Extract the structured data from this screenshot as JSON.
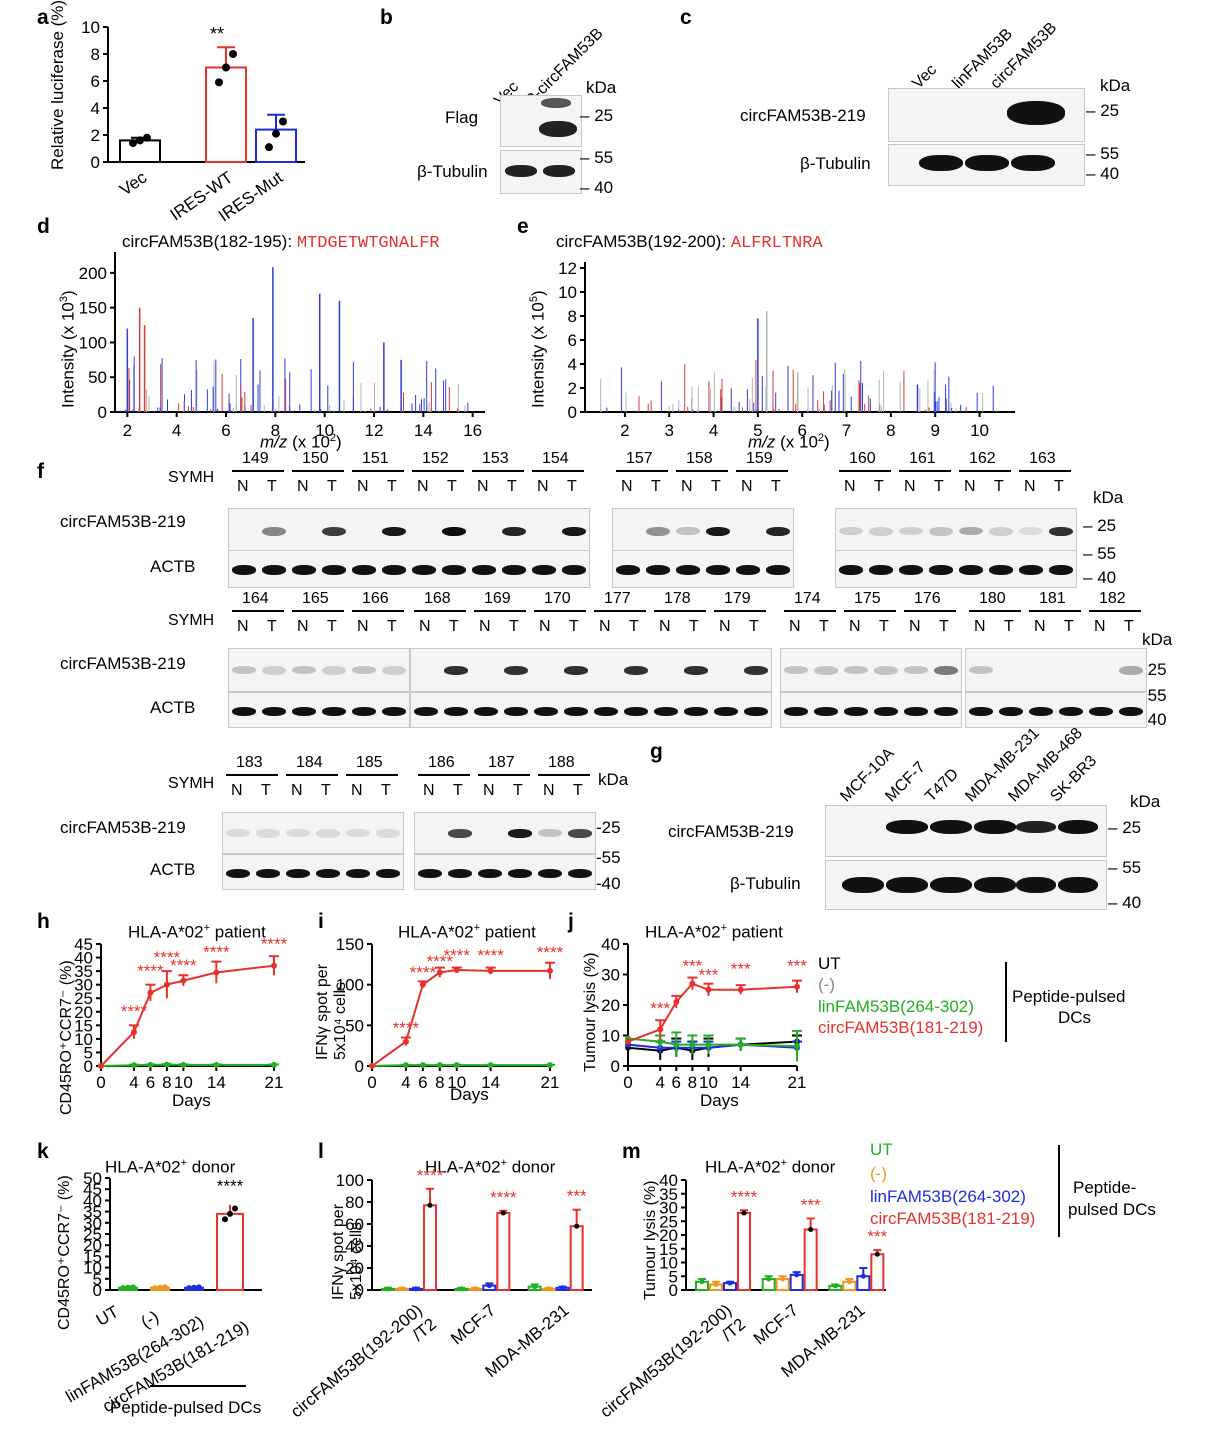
{
  "panels": {
    "a": "a",
    "b": "b",
    "c": "c",
    "d": "d",
    "e": "e",
    "f": "f",
    "g": "g",
    "h": "h",
    "i": "i",
    "j": "j",
    "k": "k",
    "l": "l",
    "m": "m"
  },
  "colors": {
    "red": "#e8312a",
    "blue": "#1f2de0",
    "green": "#22b022",
    "orange": "#f0961e",
    "black": "#000000",
    "spec_red": "#d23c3c",
    "spec_blue": "#2f3fd6",
    "spec_grey": "#b4b4b4"
  },
  "kda": "kDa",
  "panel_a": {
    "ylabel": "Relative luciferase (%)",
    "star": "**"
  },
  "panel_b": {
    "lanes": [
      "Vec",
      "P-circFAM53B"
    ],
    "rows": [
      "Flag",
      "β-Tubulin"
    ],
    "markers": [
      "25",
      "55",
      "40"
    ]
  },
  "panel_c": {
    "lanes": [
      "Vec",
      "linFAM53B",
      "circFAM53B"
    ],
    "rows": [
      "circFAM53B-219",
      "β-Tubulin"
    ],
    "markers": [
      "25",
      "55",
      "40"
    ]
  },
  "panel_d": {
    "title_prefix": "circFAM53B(182-195):",
    "seq": "MTDGETWTGNALFR",
    "ylabel": "Intensity (x 10",
    "ylabel_exp": "3",
    "ylabel_end": ")",
    "xlabel_mz": "m/z",
    "xlabel_rest": " (x 10",
    "xlabel_exp": "2",
    "xlabel_end": ")"
  },
  "panel_e": {
    "title_prefix": "circFAM53B(192-200):",
    "seq": "ALFRLTNRA",
    "ylabel": "Intensity (x 10",
    "ylabel_exp": "5",
    "ylabel_end": ")",
    "xlabel_mz": "m/z",
    "xlabel_rest": " (x 10",
    "xlabel_exp": "2",
    "xlabel_end": ")"
  },
  "panel_f": {
    "symh": "SYMH",
    "rowlabel": "circFAM53B-219",
    "actb": "ACTB",
    "N": "N",
    "T": "T",
    "row1_groups": [
      [
        "149",
        "150",
        "151",
        "152",
        "153",
        "154"
      ],
      [
        "157",
        "158",
        "159"
      ],
      [
        "160",
        "161",
        "162",
        "163"
      ]
    ],
    "row2_groups": [
      [
        "164",
        "165",
        "166"
      ],
      [
        "168",
        "169",
        "170",
        "177",
        "178",
        "179"
      ],
      [
        "174",
        "175",
        "176"
      ],
      [
        "180",
        "181",
        "182"
      ]
    ],
    "row3_groups": [
      [
        "183",
        "184",
        "185"
      ],
      [
        "186",
        "187",
        "188"
      ]
    ],
    "markers_25": "25",
    "markers_55": "55",
    "markers_40": "40",
    "markers_dash25": "-25",
    "markers_dash55": "-55",
    "markers_dash40": "-40"
  },
  "panel_g": {
    "lanes": [
      "MCF-10A",
      "MCF-7",
      "T47D",
      "MDA-MB-231",
      "MDA-MB-468",
      "SK-BR3"
    ],
    "rows": [
      "circFAM53B-219",
      "β-Tubulin"
    ],
    "markers": [
      "25",
      "55",
      "40"
    ]
  },
  "panel_h": {
    "title": "HLA-A*02",
    "title_sup": "+",
    "title_end": " patient",
    "ylabel": "CD45RO⁺CCR7⁻ (%)",
    "xlabel": "Days",
    "stars": "****"
  },
  "panel_i": {
    "title": "HLA-A*02",
    "title_sup": "+",
    "title_end": " patient",
    "ylabel1": "IFNγ spot per",
    "ylabel2": "5x10⁴ cells",
    "xlabel": "Days",
    "stars": "****"
  },
  "panel_j": {
    "title": "HLA-A*02",
    "title_sup": "+",
    "title_end": " patient",
    "ylabel": "Tumour lysis (%)",
    "xlabel": "Days",
    "stars": "***"
  },
  "legend_hij": {
    "items": [
      "UT",
      "(-)",
      "linFAM53B(264-302)",
      "circFAM53B(181-219)"
    ],
    "side1": "Peptide-pulsed",
    "side2": "DCs"
  },
  "panel_k": {
    "title": "HLA-A*02",
    "title_sup": "+",
    "title_end": " donor",
    "ylabel": "CD45RO⁺CCR7⁻ (%)",
    "stars": "****",
    "footer": "Peptide-pulsed DCs"
  },
  "panel_l": {
    "title": "HLA-A*02",
    "title_sup": "+",
    "title_end": " donor",
    "ylabel1": "IFNγ spot per",
    "ylabel2": "5x10⁴ cells",
    "cat1a": "circFAM53B(192-200)",
    "cat1b": "/T2",
    "stars": [
      "****",
      "****",
      "***"
    ]
  },
  "panel_m": {
    "title": "HLA-A*02",
    "title_sup": "+",
    "title_end": " donor",
    "ylabel": "Tumour lysis (%)",
    "cat1a": "circFAM53B(192-200)",
    "cat1b": "/T2",
    "stars": [
      "****",
      "***",
      "***"
    ]
  },
  "legend_m": {
    "items": [
      "UT",
      "(-)",
      "linFAM53B(264-302)",
      "circFAM53B(181-219)"
    ],
    "side1": "Peptide-",
    "side2": "pulsed DCs"
  },
  "chart_data": [
    {
      "panel": "a",
      "type": "bar",
      "categories": [
        "Vec",
        "IRES-WT",
        "IRES-Mut"
      ],
      "values": [
        1.6,
        7.0,
        2.4
      ],
      "errors": [
        0.2,
        1.5,
        1.1
      ],
      "points": [
        [
          1.4,
          1.6,
          1.8
        ],
        [
          5.9,
          7.0,
          8.0
        ],
        [
          1.1,
          2.1,
          3.0
        ]
      ],
      "ylim": [
        0,
        10
      ],
      "yticks": [
        0,
        2,
        4,
        6,
        8,
        10
      ],
      "colors": [
        "#000000",
        "#e8312a",
        "#1f2de0"
      ]
    },
    {
      "panel": "d",
      "type": "bar",
      "xlim": [
        1.5,
        16.5
      ],
      "xticks": [
        2,
        4,
        6,
        8,
        10,
        12,
        14,
        16
      ],
      "ylim": [
        0,
        230
      ],
      "yticks": [
        0,
        50,
        100,
        150,
        200
      ]
    },
    {
      "panel": "e",
      "type": "bar",
      "xlim": [
        1.1,
        10.8
      ],
      "xticks": [
        2,
        3,
        4,
        5,
        6,
        7,
        8,
        9,
        10
      ],
      "ylim": [
        0,
        12.5
      ],
      "yticks": [
        0,
        2,
        4,
        6,
        8,
        10,
        12
      ]
    },
    {
      "panel": "h",
      "type": "line",
      "x": [
        0,
        4,
        6,
        8,
        10,
        14,
        21
      ],
      "xticks": [
        0,
        4,
        6,
        8,
        10,
        14,
        21
      ],
      "ylim": [
        0,
        45
      ],
      "yticks": [
        0,
        5,
        10,
        15,
        20,
        25,
        30,
        35,
        40,
        45
      ],
      "series": [
        {
          "color": "#e8312a",
          "values": [
            0,
            12.5,
            27,
            30,
            31.5,
            34.5,
            37
          ],
          "errors": [
            0,
            2.5,
            3,
            5,
            2,
            4,
            3.5
          ]
        },
        {
          "color": "#22b022",
          "values": [
            0,
            0.3,
            0.4,
            0.5,
            0.4,
            0.4,
            0.4
          ],
          "errors": [
            0,
            0.2,
            0.2,
            0.2,
            0.2,
            0.2,
            0.2
          ]
        }
      ],
      "stars_x": [
        4,
        6,
        8,
        10,
        14,
        21
      ],
      "stars_y": [
        18,
        33,
        38,
        35,
        40,
        43
      ]
    },
    {
      "panel": "i",
      "type": "line",
      "x": [
        0,
        4,
        6,
        8,
        10,
        14,
        21
      ],
      "xticks": [
        0,
        4,
        6,
        8,
        10,
        14,
        21
      ],
      "ylim": [
        0,
        150
      ],
      "yticks": [
        0,
        50,
        100,
        150
      ],
      "series": [
        {
          "color": "#e8312a",
          "values": [
            0,
            30,
            100,
            115,
            118,
            117,
            117
          ],
          "errors": [
            0,
            5,
            4,
            6,
            3,
            4,
            10
          ]
        },
        {
          "color": "#22b022",
          "values": [
            0,
            1,
            1,
            1,
            1,
            1,
            1
          ],
          "errors": [
            0,
            0.5,
            0.5,
            0.5,
            0.5,
            0.5,
            0.5
          ]
        }
      ],
      "stars_x": [
        4,
        6,
        8,
        10,
        14,
        21
      ],
      "stars_y": [
        40,
        108,
        122,
        129,
        129,
        133
      ]
    },
    {
      "panel": "j",
      "type": "line",
      "x": [
        0,
        4,
        6,
        8,
        10,
        14,
        21
      ],
      "xticks": [
        0,
        4,
        6,
        8,
        10,
        14,
        21
      ],
      "ylim": [
        0,
        40
      ],
      "yticks": [
        0,
        10,
        20,
        30,
        40
      ],
      "series": [
        {
          "color": "#e8312a",
          "values": [
            8,
            12,
            21,
            27,
            25,
            25,
            26
          ],
          "errors": [
            0,
            3,
            2,
            2,
            2,
            1.5,
            2
          ]
        },
        {
          "color": "#22b022",
          "values": [
            9,
            8,
            7,
            7,
            7,
            7,
            6.5
          ],
          "errors": [
            0,
            2,
            4,
            3,
            3,
            2,
            5
          ]
        },
        {
          "color": "#1f2de0",
          "values": [
            7,
            6,
            6,
            6,
            6,
            7,
            6
          ],
          "errors": [
            0,
            2,
            2,
            2,
            2,
            2,
            2
          ]
        },
        {
          "color": "#000000",
          "values": [
            6,
            5,
            6,
            5,
            6,
            7,
            8
          ],
          "errors": [
            0,
            3,
            3,
            3,
            3,
            2,
            2
          ]
        }
      ],
      "stars_x": [
        4,
        8,
        10,
        14,
        21
      ],
      "stars_y": [
        17,
        31,
        28,
        30,
        31
      ]
    },
    {
      "panel": "k",
      "type": "bar",
      "categories": [
        "UT",
        "(-)",
        "linFAM53B(264-302)",
        "circFAM53B(181-219)"
      ],
      "values": [
        1,
        1,
        1,
        34
      ],
      "errors": [
        0.3,
        0.3,
        0.3,
        4
      ],
      "ylim": [
        0,
        50
      ],
      "yticks": [
        0,
        5,
        10,
        15,
        20,
        25,
        30,
        35,
        40,
        45,
        50
      ],
      "colors": [
        "#22b022",
        "#f0961e",
        "#1f2de0",
        "#e8312a"
      ]
    },
    {
      "panel": "l",
      "type": "bar",
      "categories": [
        "circFAM53B(192-200)/T2",
        "MCF-7",
        "MDA-MB-231"
      ],
      "ylim": [
        0,
        100
      ],
      "yticks": [
        0,
        20,
        40,
        60,
        80,
        100
      ],
      "series": [
        {
          "name": "UT",
          "color": "#22b022",
          "values": [
            1,
            1,
            3
          ]
        },
        {
          "name": "(-)",
          "color": "#f0961e",
          "values": [
            1,
            1,
            1
          ]
        },
        {
          "name": "linFAM53B(264-302)",
          "color": "#1f2de0",
          "values": [
            1,
            4,
            2
          ]
        },
        {
          "name": "circFAM53B(181-219)",
          "color": "#e8312a",
          "values": [
            77,
            70,
            58
          ]
        }
      ],
      "errors": [
        [
          1,
          1,
          1,
          15
        ],
        [
          1,
          1,
          2,
          2
        ],
        [
          2,
          1,
          1,
          15
        ]
      ]
    },
    {
      "panel": "m",
      "type": "bar",
      "categories": [
        "circFAM53B(192-200)/T2",
        "MCF-7",
        "MDA-MB-231"
      ],
      "ylim": [
        0,
        40
      ],
      "yticks": [
        0,
        5,
        10,
        15,
        20,
        25,
        30,
        35,
        40
      ],
      "series": [
        {
          "name": "UT",
          "color": "#22b022",
          "values": [
            3,
            4,
            1.5
          ]
        },
        {
          "name": "(-)",
          "color": "#f0961e",
          "values": [
            2,
            4,
            3
          ]
        },
        {
          "name": "linFAM53B(264-302)",
          "color": "#1f2de0",
          "values": [
            2.5,
            5.5,
            5
          ]
        },
        {
          "name": "circFAM53B(181-219)",
          "color": "#e8312a",
          "values": [
            28,
            22,
            13
          ]
        }
      ],
      "errors": [
        [
          1,
          1,
          0.5,
          1
        ],
        [
          1,
          1,
          1,
          4
        ],
        [
          0.5,
          1,
          3,
          1.5
        ]
      ]
    }
  ]
}
